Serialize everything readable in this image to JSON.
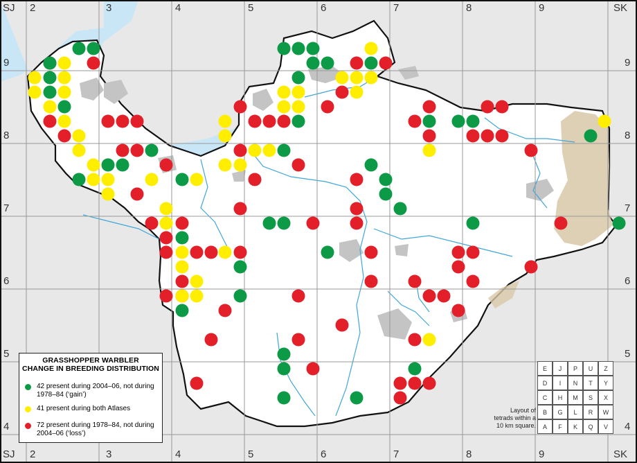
{
  "title": [
    "GRASSHOPPER WARBLER",
    "CHANGE IN BREEDING DISTRIBUTION"
  ],
  "corner_labels": {
    "top_left": "SJ",
    "top_right": "SK",
    "bottom_left": "SJ",
    "bottom_right": "SK"
  },
  "x_labels": [
    "2",
    "3",
    "4",
    "5",
    "6",
    "7",
    "8",
    "9"
  ],
  "y_labels": [
    "9",
    "8",
    "7",
    "6",
    "5",
    "4"
  ],
  "legend": [
    {
      "key": "gain",
      "color": "#0d9a47",
      "text": "42 present during 2004–06, not during 1978–84 (‘gain’)"
    },
    {
      "key": "both",
      "color": "#ffee00",
      "text": "41 present during both Atlases"
    },
    {
      "key": "loss",
      "color": "#e3202a",
      "text": "72 present during 1978–84, not during 2004–06 (‘loss’)"
    }
  ],
  "tetrad_key": {
    "rows": [
      [
        "E",
        "J",
        "P",
        "U",
        "Z"
      ],
      [
        "D",
        "I",
        "N",
        "T",
        "Y"
      ],
      [
        "C",
        "H",
        "M",
        "S",
        "X"
      ],
      [
        "B",
        "G",
        "L",
        "R",
        "W"
      ],
      [
        "A",
        "F",
        "K",
        "Q",
        "V"
      ]
    ],
    "caption": [
      "Layout of",
      "tetrads within a",
      "10 km square."
    ]
  },
  "colors": {
    "sea": "#c9e6f7",
    "land": "#ffffff",
    "outside": "#e8e8e8",
    "urban": "#c8c8c8",
    "upland": "#d8c8a8",
    "river": "#41a6d9",
    "boundary": "#111111",
    "gain": "#0d9a47",
    "both": "#ffee00",
    "loss": "#e3202a"
  },
  "dots": {
    "gain": [
      [
        114,
        70
      ],
      [
        135,
        70
      ],
      [
        410,
        70
      ],
      [
        431,
        70
      ],
      [
        452,
        70
      ],
      [
        452,
        91
      ],
      [
        473,
        91
      ],
      [
        72,
        112
      ],
      [
        72,
        133
      ],
      [
        93,
        154
      ],
      [
        431,
        112
      ],
      [
        431,
        175
      ],
      [
        620,
        175
      ],
      [
        662,
        175
      ],
      [
        683,
        175
      ],
      [
        853,
        196
      ],
      [
        219,
        217
      ],
      [
        410,
        217
      ],
      [
        156,
        238
      ],
      [
        177,
        238
      ],
      [
        536,
        238
      ],
      [
        114,
        259
      ],
      [
        263,
        259
      ],
      [
        557,
        259
      ],
      [
        557,
        280
      ],
      [
        578,
        301
      ],
      [
        389,
        322
      ],
      [
        410,
        322
      ],
      [
        683,
        322
      ],
      [
        894,
        322
      ],
      [
        263,
        343
      ],
      [
        347,
        385
      ],
      [
        473,
        364
      ],
      [
        347,
        427
      ],
      [
        263,
        448
      ],
      [
        410,
        511
      ],
      [
        410,
        532
      ],
      [
        599,
        532
      ],
      [
        410,
        574
      ],
      [
        515,
        574
      ],
      [
        72,
        91
      ],
      [
        536,
        91
      ]
    ],
    "both": [
      [
        50,
        112
      ],
      [
        50,
        133
      ],
      [
        93,
        91
      ],
      [
        93,
        112
      ],
      [
        93,
        133
      ],
      [
        72,
        154
      ],
      [
        93,
        175
      ],
      [
        114,
        196
      ],
      [
        114,
        217
      ],
      [
        135,
        238
      ],
      [
        135,
        259
      ],
      [
        156,
        259
      ],
      [
        156,
        280
      ],
      [
        219,
        259
      ],
      [
        240,
        301
      ],
      [
        240,
        322
      ],
      [
        263,
        364
      ],
      [
        263,
        385
      ],
      [
        284,
        406
      ],
      [
        263,
        427
      ],
      [
        284,
        427
      ],
      [
        284,
        259
      ],
      [
        325,
        238
      ],
      [
        347,
        238
      ],
      [
        325,
        175
      ],
      [
        325,
        196
      ],
      [
        368,
        217
      ],
      [
        389,
        217
      ],
      [
        410,
        133
      ],
      [
        431,
        133
      ],
      [
        410,
        154
      ],
      [
        431,
        154
      ],
      [
        494,
        112
      ],
      [
        515,
        112
      ],
      [
        515,
        133
      ],
      [
        536,
        112
      ],
      [
        536,
        70
      ],
      [
        620,
        217
      ],
      [
        873,
        175
      ],
      [
        620,
        490
      ],
      [
        325,
        364
      ]
    ],
    "loss": [
      [
        72,
        91
      ],
      [
        135,
        91
      ],
      [
        156,
        175
      ],
      [
        177,
        175
      ],
      [
        198,
        175
      ],
      [
        72,
        175
      ],
      [
        93,
        196
      ],
      [
        177,
        217
      ],
      [
        198,
        217
      ],
      [
        240,
        238
      ],
      [
        198,
        280
      ],
      [
        219,
        322
      ],
      [
        263,
        322
      ],
      [
        240,
        343
      ],
      [
        240,
        364
      ],
      [
        284,
        364
      ],
      [
        305,
        364
      ],
      [
        347,
        364
      ],
      [
        263,
        406
      ],
      [
        240,
        427
      ],
      [
        263,
        427
      ],
      [
        325,
        448
      ],
      [
        305,
        490
      ],
      [
        284,
        553
      ],
      [
        347,
        154
      ],
      [
        347,
        217
      ],
      [
        368,
        175
      ],
      [
        389,
        175
      ],
      [
        410,
        175
      ],
      [
        431,
        238
      ],
      [
        368,
        259
      ],
      [
        347,
        301
      ],
      [
        452,
        322
      ],
      [
        515,
        322
      ],
      [
        515,
        301
      ],
      [
        515,
        259
      ],
      [
        473,
        154
      ],
      [
        494,
        133
      ],
      [
        515,
        91
      ],
      [
        557,
        91
      ],
      [
        620,
        154
      ],
      [
        599,
        175
      ],
      [
        620,
        196
      ],
      [
        704,
        154
      ],
      [
        725,
        154
      ],
      [
        683,
        196
      ],
      [
        704,
        196
      ],
      [
        725,
        196
      ],
      [
        767,
        217
      ],
      [
        536,
        364
      ],
      [
        536,
        406
      ],
      [
        599,
        406
      ],
      [
        620,
        427
      ],
      [
        641,
        427
      ],
      [
        662,
        364
      ],
      [
        662,
        385
      ],
      [
        683,
        364
      ],
      [
        683,
        406
      ],
      [
        767,
        385
      ],
      [
        662,
        448
      ],
      [
        810,
        322
      ],
      [
        431,
        427
      ],
      [
        431,
        490
      ],
      [
        452,
        532
      ],
      [
        494,
        469
      ],
      [
        599,
        490
      ],
      [
        578,
        553
      ],
      [
        599,
        553
      ],
      [
        620,
        553
      ],
      [
        578,
        574
      ],
      [
        536,
        406
      ],
      [
        431,
        490
      ]
    ]
  }
}
